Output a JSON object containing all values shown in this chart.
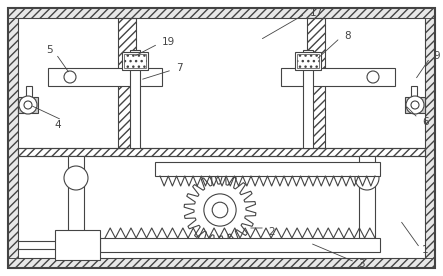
{
  "fig_width": 4.43,
  "fig_height": 2.76,
  "dpi": 100,
  "bg_color": "#ffffff",
  "line_color": "#444444",
  "label_fontsize": 7,
  "ldr_lw": 0.5,
  "lw": 0.8
}
